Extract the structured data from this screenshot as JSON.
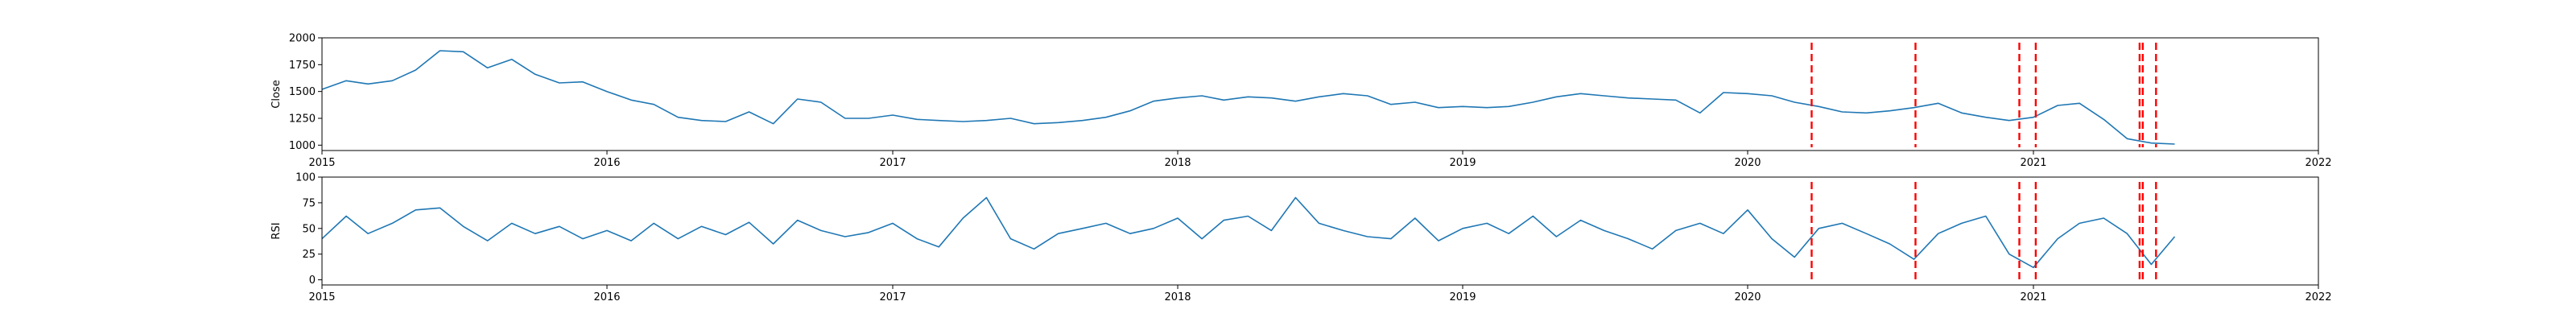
{
  "chart_data": [
    {
      "type": "line",
      "title": "",
      "xlabel": "",
      "ylabel": "Close",
      "xlim": [
        "2015-01-01",
        "2022-01-01"
      ],
      "ylim": [
        950,
        2000
      ],
      "xticks": [
        "2015",
        "2016",
        "2017",
        "2018",
        "2019",
        "2020",
        "2021",
        "2022"
      ],
      "yticks": [
        1000,
        1250,
        1500,
        1750,
        2000
      ],
      "grid": false,
      "series": [
        {
          "color": "#1f77b4",
          "x": [
            "2015-01-01",
            "2015-02-01",
            "2015-03-01",
            "2015-04-01",
            "2015-05-01",
            "2015-06-01",
            "2015-07-01",
            "2015-08-01",
            "2015-09-01",
            "2015-10-01",
            "2015-11-01",
            "2015-12-01",
            "2016-01-01",
            "2016-02-01",
            "2016-03-01",
            "2016-04-01",
            "2016-05-01",
            "2016-06-01",
            "2016-07-01",
            "2016-08-01",
            "2016-09-01",
            "2016-10-01",
            "2016-11-01",
            "2016-12-01",
            "2017-01-01",
            "2017-02-01",
            "2017-03-01",
            "2017-04-01",
            "2017-05-01",
            "2017-06-01",
            "2017-07-01",
            "2017-08-01",
            "2017-09-01",
            "2017-10-01",
            "2017-11-01",
            "2017-12-01",
            "2018-01-01",
            "2018-02-01",
            "2018-03-01",
            "2018-04-01",
            "2018-05-01",
            "2018-06-01",
            "2018-07-01",
            "2018-08-01",
            "2018-09-01",
            "2018-10-01",
            "2018-11-01",
            "2018-12-01",
            "2019-01-01",
            "2019-02-01",
            "2019-03-01",
            "2019-04-01",
            "2019-05-01",
            "2019-06-01",
            "2019-07-01",
            "2019-08-01",
            "2019-09-01",
            "2019-10-01",
            "2019-11-01",
            "2019-12-01",
            "2020-01-01",
            "2020-02-01",
            "2020-03-01",
            "2020-04-01",
            "2020-05-01",
            "2020-06-01",
            "2020-07-01",
            "2020-08-01",
            "2020-09-01",
            "2020-10-01",
            "2020-11-01",
            "2020-12-01",
            "2021-01-01",
            "2021-02-01",
            "2021-03-01",
            "2021-04-01",
            "2021-05-01",
            "2021-06-01",
            "2021-07-01"
          ],
          "values": [
            1520,
            1600,
            1570,
            1600,
            1700,
            1880,
            1870,
            1720,
            1800,
            1660,
            1580,
            1590,
            1500,
            1420,
            1380,
            1260,
            1230,
            1220,
            1310,
            1200,
            1430,
            1400,
            1250,
            1250,
            1280,
            1240,
            1230,
            1220,
            1230,
            1250,
            1200,
            1210,
            1230,
            1260,
            1320,
            1410,
            1440,
            1460,
            1420,
            1450,
            1440,
            1410,
            1450,
            1480,
            1460,
            1380,
            1400,
            1350,
            1360,
            1350,
            1360,
            1400,
            1450,
            1480,
            1460,
            1440,
            1430,
            1420,
            1300,
            1490,
            1480,
            1460,
            1400,
            1360,
            1310,
            1300,
            1320,
            1350,
            1390,
            1300,
            1260,
            1230,
            1260,
            1370,
            1390,
            1240,
            1060,
            1020,
            1010
          ]
        }
      ],
      "event_dates": [
        "2020-03-23",
        "2020-08-03",
        "2020-12-14",
        "2021-01-04",
        "2021-05-17",
        "2021-05-21",
        "2021-06-07"
      ]
    },
    {
      "type": "line",
      "title": "",
      "xlabel": "",
      "ylabel": "RSI",
      "xlim": [
        "2015-01-01",
        "2022-01-01"
      ],
      "ylim": [
        -5,
        100
      ],
      "xticks": [
        "2015",
        "2016",
        "2017",
        "2018",
        "2019",
        "2020",
        "2021",
        "2022"
      ],
      "yticks": [
        0,
        25,
        50,
        75,
        100
      ],
      "grid": false,
      "series": [
        {
          "color": "#1f77b4",
          "x": [
            "2015-01-01",
            "2015-02-01",
            "2015-03-01",
            "2015-04-01",
            "2015-05-01",
            "2015-06-01",
            "2015-07-01",
            "2015-08-01",
            "2015-09-01",
            "2015-10-01",
            "2015-11-01",
            "2015-12-01",
            "2016-01-01",
            "2016-02-01",
            "2016-03-01",
            "2016-04-01",
            "2016-05-01",
            "2016-06-01",
            "2016-07-01",
            "2016-08-01",
            "2016-09-01",
            "2016-10-01",
            "2016-11-01",
            "2016-12-01",
            "2017-01-01",
            "2017-02-01",
            "2017-03-01",
            "2017-04-01",
            "2017-05-01",
            "2017-06-01",
            "2017-07-01",
            "2017-08-01",
            "2017-09-01",
            "2017-10-01",
            "2017-11-01",
            "2017-12-01",
            "2018-01-01",
            "2018-02-01",
            "2018-03-01",
            "2018-04-01",
            "2018-05-01",
            "2018-06-01",
            "2018-07-01",
            "2018-08-01",
            "2018-09-01",
            "2018-10-01",
            "2018-11-01",
            "2018-12-01",
            "2019-01-01",
            "2019-02-01",
            "2019-03-01",
            "2019-04-01",
            "2019-05-01",
            "2019-06-01",
            "2019-07-01",
            "2019-08-01",
            "2019-09-01",
            "2019-10-01",
            "2019-11-01",
            "2019-12-01",
            "2020-01-01",
            "2020-02-01",
            "2020-03-01",
            "2020-04-01",
            "2020-05-01",
            "2020-06-01",
            "2020-07-01",
            "2020-08-01",
            "2020-09-01",
            "2020-10-01",
            "2020-11-01",
            "2020-12-01",
            "2021-01-01",
            "2021-02-01",
            "2021-03-01",
            "2021-04-01",
            "2021-05-01",
            "2021-06-01",
            "2021-07-01"
          ],
          "values": [
            40,
            62,
            45,
            55,
            68,
            70,
            52,
            38,
            55,
            45,
            52,
            40,
            48,
            38,
            55,
            40,
            52,
            44,
            56,
            35,
            58,
            48,
            42,
            46,
            55,
            40,
            32,
            60,
            80,
            40,
            30,
            45,
            50,
            55,
            45,
            50,
            60,
            40,
            58,
            62,
            48,
            80,
            55,
            48,
            42,
            40,
            60,
            38,
            50,
            55,
            45,
            62,
            42,
            58,
            48,
            40,
            30,
            48,
            55,
            45,
            68,
            40,
            22,
            50,
            55,
            45,
            35,
            20,
            45,
            55,
            62,
            25,
            12,
            40,
            55,
            60,
            45,
            15,
            42
          ]
        }
      ],
      "event_dates": [
        "2020-03-23",
        "2020-08-03",
        "2020-12-14",
        "2021-01-04",
        "2021-05-17",
        "2021-05-21",
        "2021-06-07"
      ]
    }
  ]
}
